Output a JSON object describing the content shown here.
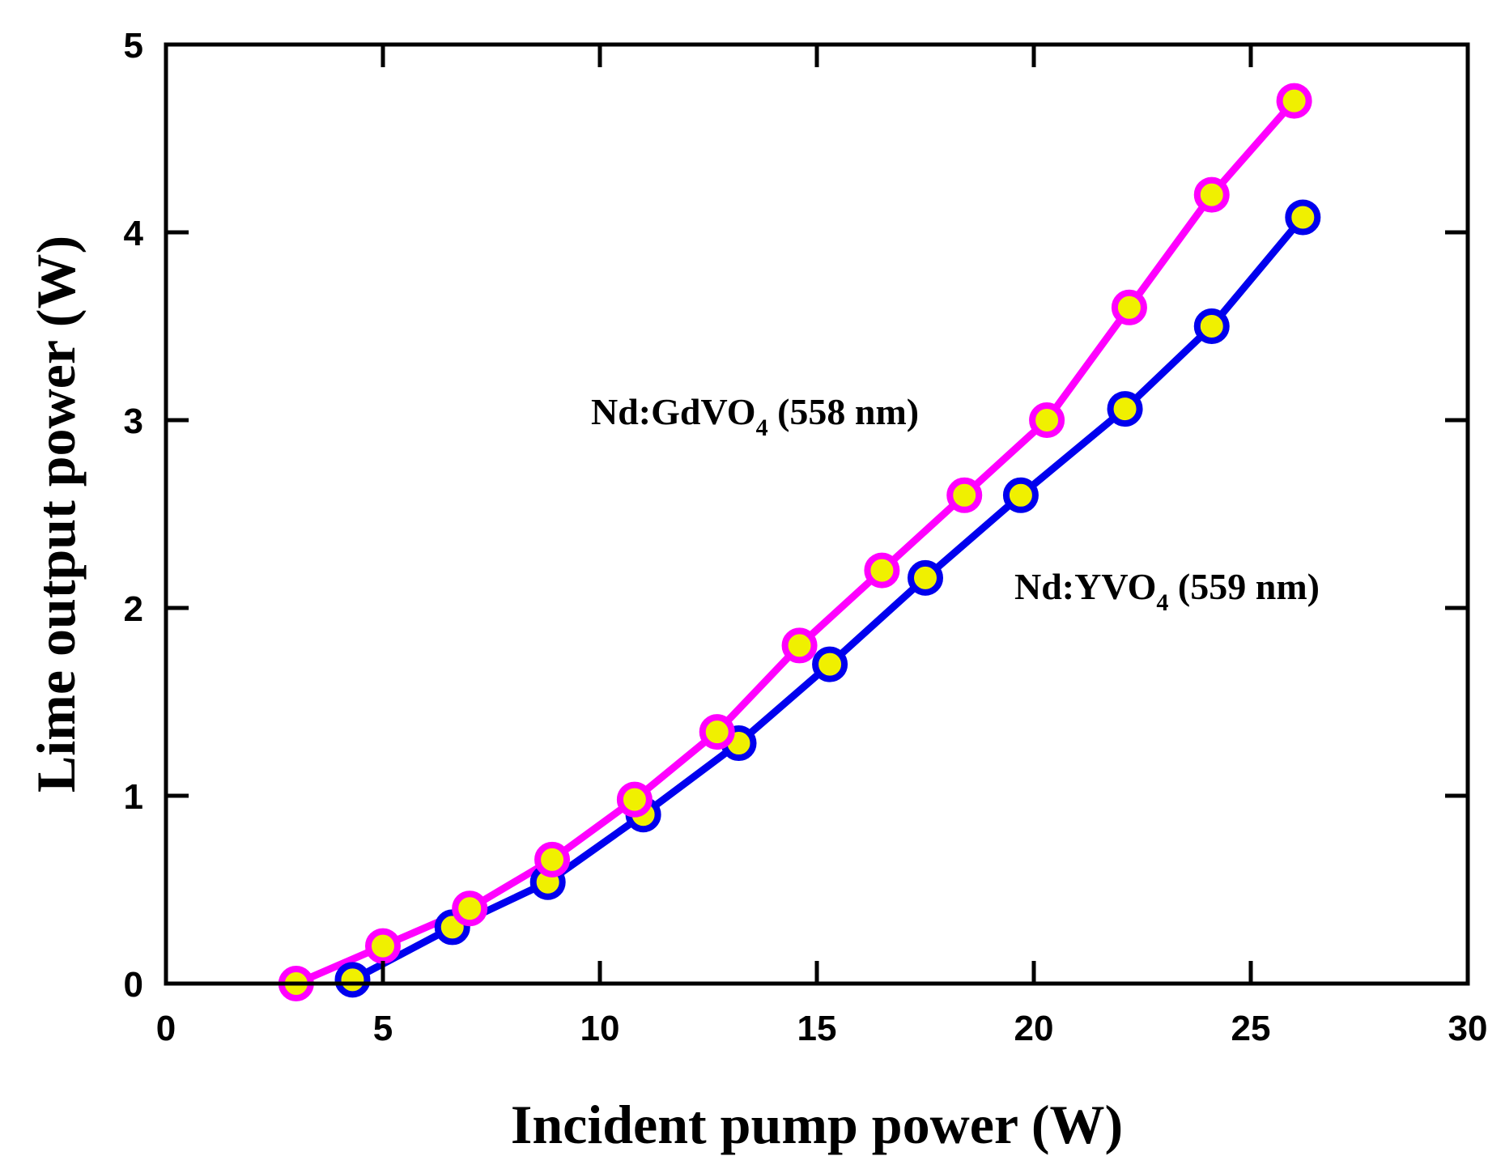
{
  "chart_data": {
    "type": "line",
    "title": "",
    "xlabel": "Incident pump power (W)",
    "ylabel": "Lime output power (W)",
    "xlim": [
      0,
      30
    ],
    "ylim": [
      0,
      5
    ],
    "xticks": [
      0,
      5,
      10,
      15,
      20,
      25,
      30
    ],
    "yticks": [
      0,
      1,
      2,
      3,
      4,
      5
    ],
    "xtick_labels": [
      "0",
      "5",
      "10",
      "15",
      "20",
      "25",
      "30"
    ],
    "ytick_labels": [
      "0",
      "1",
      "2",
      "3",
      "4",
      "5"
    ],
    "grid": false,
    "legend": "none",
    "marker_fill": "#f0f000",
    "series": [
      {
        "name": "Nd:GdVO4 (558 nm)",
        "label_main": "Nd:GdVO",
        "label_sub": "4",
        "label_tail": " (558 nm)",
        "color": "#ff00ff",
        "x": [
          3.0,
          5.0,
          7.0,
          8.9,
          10.8,
          12.7,
          14.6,
          16.5,
          18.4,
          20.3,
          22.2,
          24.1,
          26.0
        ],
        "y": [
          0.0,
          0.2,
          0.4,
          0.66,
          0.98,
          1.34,
          1.8,
          2.2,
          2.6,
          3.0,
          3.6,
          4.2,
          4.7
        ]
      },
      {
        "name": "Nd:YVO4 (559 nm)",
        "label_main": "Nd:YVO",
        "label_sub": "4",
        "label_tail": " (559 nm)",
        "color": "#0000ee",
        "x": [
          4.3,
          6.6,
          8.8,
          11.0,
          13.2,
          15.3,
          17.5,
          19.7,
          22.1,
          24.1,
          26.2
        ],
        "y": [
          0.02,
          0.3,
          0.54,
          0.9,
          1.28,
          1.7,
          2.16,
          2.6,
          3.06,
          3.5,
          4.08
        ]
      }
    ]
  }
}
